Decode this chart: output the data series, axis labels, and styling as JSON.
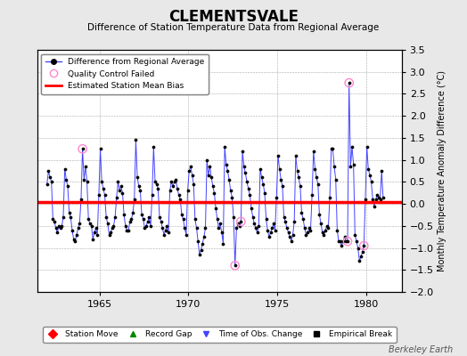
{
  "title": "CLEMENTSVALE",
  "subtitle": "Difference of Station Temperature Data from Regional Average",
  "ylabel_right": "Monthly Temperature Anomaly Difference (°C)",
  "xlim": [
    1961.5,
    1982.0
  ],
  "ylim": [
    -2.0,
    3.5
  ],
  "yticks": [
    -2,
    -1.5,
    -1,
    -0.5,
    0,
    0.5,
    1,
    1.5,
    2,
    2.5,
    3,
    3.5
  ],
  "xticks": [
    1965,
    1970,
    1975,
    1980
  ],
  "bias_value": 0.05,
  "background_color": "#e8e8e8",
  "plot_bg_color": "#ffffff",
  "line_color": "#4444ff",
  "bias_color": "#ff0000",
  "marker_color": "#000000",
  "qc_fail_color": "#ff88cc",
  "watermark": "Berkeley Earth",
  "data": [
    [
      1962.042,
      0.45
    ],
    [
      1962.125,
      0.75
    ],
    [
      1962.208,
      0.6
    ],
    [
      1962.292,
      0.5
    ],
    [
      1962.375,
      -0.35
    ],
    [
      1962.458,
      -0.4
    ],
    [
      1962.542,
      -0.55
    ],
    [
      1962.625,
      -0.65
    ],
    [
      1962.708,
      -0.5
    ],
    [
      1962.792,
      -0.55
    ],
    [
      1962.875,
      -0.5
    ],
    [
      1962.958,
      -0.3
    ],
    [
      1963.042,
      0.8
    ],
    [
      1963.125,
      0.55
    ],
    [
      1963.208,
      0.4
    ],
    [
      1963.292,
      -0.2
    ],
    [
      1963.375,
      -0.3
    ],
    [
      1963.458,
      -0.6
    ],
    [
      1963.542,
      -0.8
    ],
    [
      1963.625,
      -0.85
    ],
    [
      1963.708,
      -0.7
    ],
    [
      1963.792,
      -0.55
    ],
    [
      1963.875,
      -0.45
    ],
    [
      1963.958,
      0.1
    ],
    [
      1964.042,
      1.25
    ],
    [
      1964.125,
      0.55
    ],
    [
      1964.208,
      0.85
    ],
    [
      1964.292,
      0.5
    ],
    [
      1964.375,
      -0.35
    ],
    [
      1964.458,
      -0.45
    ],
    [
      1964.542,
      -0.5
    ],
    [
      1964.625,
      -0.8
    ],
    [
      1964.708,
      -0.65
    ],
    [
      1964.792,
      -0.55
    ],
    [
      1964.875,
      -0.7
    ],
    [
      1964.958,
      0.2
    ],
    [
      1965.042,
      1.25
    ],
    [
      1965.125,
      0.5
    ],
    [
      1965.208,
      0.35
    ],
    [
      1965.292,
      0.2
    ],
    [
      1965.375,
      -0.3
    ],
    [
      1965.458,
      -0.45
    ],
    [
      1965.542,
      -0.7
    ],
    [
      1965.625,
      -0.65
    ],
    [
      1965.708,
      -0.55
    ],
    [
      1965.792,
      -0.5
    ],
    [
      1965.875,
      -0.3
    ],
    [
      1965.958,
      0.15
    ],
    [
      1966.042,
      0.5
    ],
    [
      1966.125,
      0.3
    ],
    [
      1966.208,
      0.4
    ],
    [
      1966.292,
      0.25
    ],
    [
      1966.375,
      -0.25
    ],
    [
      1966.458,
      -0.5
    ],
    [
      1966.542,
      -0.6
    ],
    [
      1966.625,
      -0.6
    ],
    [
      1966.708,
      -0.4
    ],
    [
      1966.792,
      -0.35
    ],
    [
      1966.875,
      -0.2
    ],
    [
      1966.958,
      0.1
    ],
    [
      1967.042,
      1.45
    ],
    [
      1967.125,
      0.6
    ],
    [
      1967.208,
      0.4
    ],
    [
      1967.292,
      0.3
    ],
    [
      1967.375,
      -0.25
    ],
    [
      1967.458,
      -0.35
    ],
    [
      1967.542,
      -0.55
    ],
    [
      1967.625,
      -0.5
    ],
    [
      1967.708,
      -0.4
    ],
    [
      1967.792,
      -0.3
    ],
    [
      1967.875,
      -0.5
    ],
    [
      1967.958,
      0.2
    ],
    [
      1968.042,
      1.3
    ],
    [
      1968.125,
      0.5
    ],
    [
      1968.208,
      0.45
    ],
    [
      1968.292,
      0.35
    ],
    [
      1968.375,
      -0.3
    ],
    [
      1968.458,
      -0.4
    ],
    [
      1968.542,
      -0.55
    ],
    [
      1968.625,
      -0.7
    ],
    [
      1968.708,
      -0.6
    ],
    [
      1968.792,
      -0.5
    ],
    [
      1968.875,
      -0.65
    ],
    [
      1968.958,
      0.3
    ],
    [
      1969.042,
      0.5
    ],
    [
      1969.125,
      0.4
    ],
    [
      1969.208,
      0.5
    ],
    [
      1969.292,
      0.55
    ],
    [
      1969.375,
      0.35
    ],
    [
      1969.458,
      0.2
    ],
    [
      1969.542,
      0.1
    ],
    [
      1969.625,
      -0.25
    ],
    [
      1969.708,
      -0.35
    ],
    [
      1969.792,
      -0.55
    ],
    [
      1969.875,
      -0.7
    ],
    [
      1969.958,
      0.3
    ],
    [
      1970.042,
      0.75
    ],
    [
      1970.125,
      0.85
    ],
    [
      1970.208,
      0.65
    ],
    [
      1970.292,
      0.45
    ],
    [
      1970.375,
      -0.35
    ],
    [
      1970.458,
      -0.55
    ],
    [
      1970.542,
      -0.85
    ],
    [
      1970.625,
      -1.15
    ],
    [
      1970.708,
      -1.05
    ],
    [
      1970.792,
      -0.9
    ],
    [
      1970.875,
      -0.75
    ],
    [
      1970.958,
      -0.55
    ],
    [
      1971.042,
      1.0
    ],
    [
      1971.125,
      0.65
    ],
    [
      1971.208,
      0.85
    ],
    [
      1971.292,
      0.6
    ],
    [
      1971.375,
      0.4
    ],
    [
      1971.458,
      0.25
    ],
    [
      1971.542,
      -0.1
    ],
    [
      1971.625,
      -0.35
    ],
    [
      1971.708,
      -0.55
    ],
    [
      1971.792,
      -0.45
    ],
    [
      1971.875,
      -0.65
    ],
    [
      1971.958,
      -0.9
    ],
    [
      1972.042,
      1.3
    ],
    [
      1972.125,
      0.9
    ],
    [
      1972.208,
      0.75
    ],
    [
      1972.292,
      0.55
    ],
    [
      1972.375,
      0.3
    ],
    [
      1972.458,
      0.15
    ],
    [
      1972.542,
      -0.3
    ],
    [
      1972.625,
      -1.4
    ],
    [
      1972.708,
      -0.55
    ],
    [
      1972.792,
      -0.45
    ],
    [
      1972.875,
      -0.5
    ],
    [
      1972.958,
      -0.4
    ],
    [
      1973.042,
      1.2
    ],
    [
      1973.125,
      0.85
    ],
    [
      1973.208,
      0.7
    ],
    [
      1973.292,
      0.5
    ],
    [
      1973.375,
      0.35
    ],
    [
      1973.458,
      0.2
    ],
    [
      1973.542,
      -0.1
    ],
    [
      1973.625,
      -0.3
    ],
    [
      1973.708,
      -0.45
    ],
    [
      1973.792,
      -0.55
    ],
    [
      1973.875,
      -0.65
    ],
    [
      1973.958,
      -0.5
    ],
    [
      1974.042,
      0.8
    ],
    [
      1974.125,
      0.6
    ],
    [
      1974.208,
      0.45
    ],
    [
      1974.292,
      0.25
    ],
    [
      1974.375,
      -0.35
    ],
    [
      1974.458,
      -0.6
    ],
    [
      1974.542,
      -0.75
    ],
    [
      1974.625,
      -0.65
    ],
    [
      1974.708,
      -0.55
    ],
    [
      1974.792,
      -0.45
    ],
    [
      1974.875,
      -0.6
    ],
    [
      1974.958,
      0.15
    ],
    [
      1975.042,
      1.1
    ],
    [
      1975.125,
      0.8
    ],
    [
      1975.208,
      0.55
    ],
    [
      1975.292,
      0.4
    ],
    [
      1975.375,
      -0.3
    ],
    [
      1975.458,
      -0.4
    ],
    [
      1975.542,
      -0.55
    ],
    [
      1975.625,
      -0.65
    ],
    [
      1975.708,
      -0.75
    ],
    [
      1975.792,
      -0.85
    ],
    [
      1975.875,
      -0.7
    ],
    [
      1975.958,
      -0.4
    ],
    [
      1976.042,
      1.1
    ],
    [
      1976.125,
      0.75
    ],
    [
      1976.208,
      0.6
    ],
    [
      1976.292,
      0.4
    ],
    [
      1976.375,
      -0.2
    ],
    [
      1976.458,
      -0.35
    ],
    [
      1976.542,
      -0.55
    ],
    [
      1976.625,
      -0.7
    ],
    [
      1976.708,
      -0.65
    ],
    [
      1976.792,
      -0.55
    ],
    [
      1976.875,
      -0.6
    ],
    [
      1976.958,
      0.2
    ],
    [
      1977.042,
      1.2
    ],
    [
      1977.125,
      0.8
    ],
    [
      1977.208,
      0.6
    ],
    [
      1977.292,
      0.45
    ],
    [
      1977.375,
      -0.25
    ],
    [
      1977.458,
      -0.45
    ],
    [
      1977.542,
      -0.65
    ],
    [
      1977.625,
      -0.7
    ],
    [
      1977.708,
      -0.6
    ],
    [
      1977.792,
      -0.5
    ],
    [
      1977.875,
      -0.55
    ],
    [
      1977.958,
      0.15
    ],
    [
      1978.042,
      1.25
    ],
    [
      1978.125,
      1.25
    ],
    [
      1978.208,
      0.85
    ],
    [
      1978.292,
      0.55
    ],
    [
      1978.375,
      -0.6
    ],
    [
      1978.458,
      -0.85
    ],
    [
      1978.542,
      -0.85
    ],
    [
      1978.625,
      -0.95
    ],
    [
      1978.708,
      -0.85
    ],
    [
      1978.792,
      -0.75
    ],
    [
      1978.875,
      -0.85
    ],
    [
      1978.958,
      -0.85
    ],
    [
      1979.042,
      2.75
    ],
    [
      1979.125,
      0.85
    ],
    [
      1979.208,
      1.3
    ],
    [
      1979.292,
      0.9
    ],
    [
      1979.375,
      -0.7
    ],
    [
      1979.458,
      -0.85
    ],
    [
      1979.542,
      -1.0
    ],
    [
      1979.625,
      -1.3
    ],
    [
      1979.708,
      -1.2
    ],
    [
      1979.792,
      -1.1
    ],
    [
      1979.875,
      -0.95
    ],
    [
      1979.958,
      0.1
    ],
    [
      1980.042,
      1.3
    ],
    [
      1980.125,
      0.8
    ],
    [
      1980.208,
      0.65
    ],
    [
      1980.292,
      0.5
    ],
    [
      1980.375,
      0.1
    ],
    [
      1980.458,
      -0.05
    ],
    [
      1980.542,
      0.1
    ],
    [
      1980.625,
      0.2
    ],
    [
      1980.708,
      0.15
    ],
    [
      1980.792,
      0.1
    ],
    [
      1980.875,
      0.75
    ],
    [
      1980.958,
      0.15
    ]
  ],
  "qc_fail_points": [
    [
      1964.042,
      1.25
    ],
    [
      1972.625,
      -1.4
    ],
    [
      1972.958,
      -0.4
    ],
    [
      1978.958,
      -0.85
    ],
    [
      1979.042,
      2.75
    ],
    [
      1979.875,
      -0.95
    ]
  ],
  "legend1": [
    {
      "label": "Difference from Regional Average",
      "color": "#4444ff",
      "marker": "o",
      "linestyle": "-"
    },
    {
      "label": "Quality Control Failed",
      "color": "#ff88cc",
      "marker": "o",
      "linestyle": "none"
    },
    {
      "label": "Estimated Station Mean Bias",
      "color": "#ff0000",
      "marker": "none",
      "linestyle": "-"
    }
  ],
  "legend2": [
    {
      "label": "Station Move",
      "color": "#ff0000",
      "marker": "D"
    },
    {
      "label": "Record Gap",
      "color": "#008800",
      "marker": "^"
    },
    {
      "label": "Time of Obs. Change",
      "color": "#4444ff",
      "marker": "v"
    },
    {
      "label": "Empirical Break",
      "color": "#000000",
      "marker": "s"
    }
  ]
}
